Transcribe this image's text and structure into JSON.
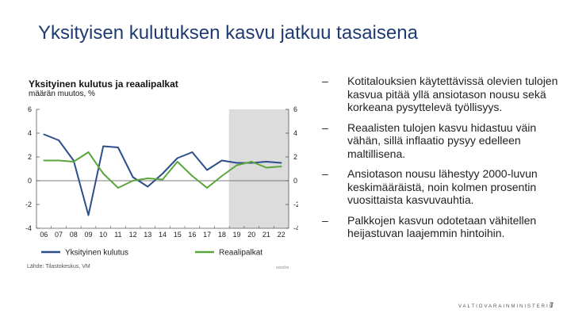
{
  "slide": {
    "title": "Yksityisen kulutuksen kasvu jatkuu tasaisena",
    "footer_brand": "VALTIOVARAINMINISTERIÖ",
    "page_number": "7"
  },
  "bullets": [
    {
      "dash": "–",
      "text": "Kotitalouksien käytettävissä olevien tulojen kasvua pitää yllä ansiotason nousu sekä korkeana pysyttelevä työllisyys."
    },
    {
      "dash": "–",
      "text": "Reaalisten tulojen kasvu hidastuu väin vähän, sillä inflaatio pysyy edelleen maltillisena."
    },
    {
      "dash": "–",
      "text": "Ansiotason nousu lähestyy 2000-luvun keskimääräistä, noin kolmen prosentin vuosittaista kasvuvauhtia."
    },
    {
      "dash": "–",
      "text": "Palkkojen kasvun odotetaan vähitellen heijastuvan laajemmin hintoihin."
    }
  ],
  "chart_data": {
    "type": "line",
    "title": "Yksityinen kulutus ja reaalipalkat",
    "subtitle": "määrän muutos, %",
    "categories": [
      "06",
      "07",
      "08",
      "09",
      "10",
      "11",
      "12",
      "13",
      "14",
      "15",
      "16",
      "17",
      "18",
      "19",
      "20",
      "21",
      "22"
    ],
    "ylim": [
      -4,
      6
    ],
    "yticks": [
      -4,
      -2,
      0,
      2,
      4,
      6
    ],
    "forecast_start": "19",
    "forecast_end": "22",
    "series": [
      {
        "name": "Yksityinen kulutus",
        "color": "#2d4e8c",
        "values": [
          3.9,
          3.4,
          1.7,
          -2.9,
          2.9,
          2.8,
          0.3,
          -0.5,
          0.6,
          1.9,
          2.4,
          0.9,
          1.7,
          1.5,
          1.5,
          1.6,
          1.5
        ]
      },
      {
        "name": "Reaalipalkat",
        "color": "#5aa63c",
        "values": [
          1.7,
          1.7,
          1.6,
          2.4,
          0.6,
          -0.6,
          0.0,
          0.2,
          0.1,
          1.6,
          0.4,
          -0.6,
          0.4,
          1.3,
          1.6,
          1.1,
          1.2
        ]
      }
    ],
    "source": "Lähde: Tilastokeskus, VM",
    "code": "xxxx/xx"
  },
  "colors": {
    "title": "#1f3b73",
    "forecast_shade": "#dcdcdc"
  }
}
